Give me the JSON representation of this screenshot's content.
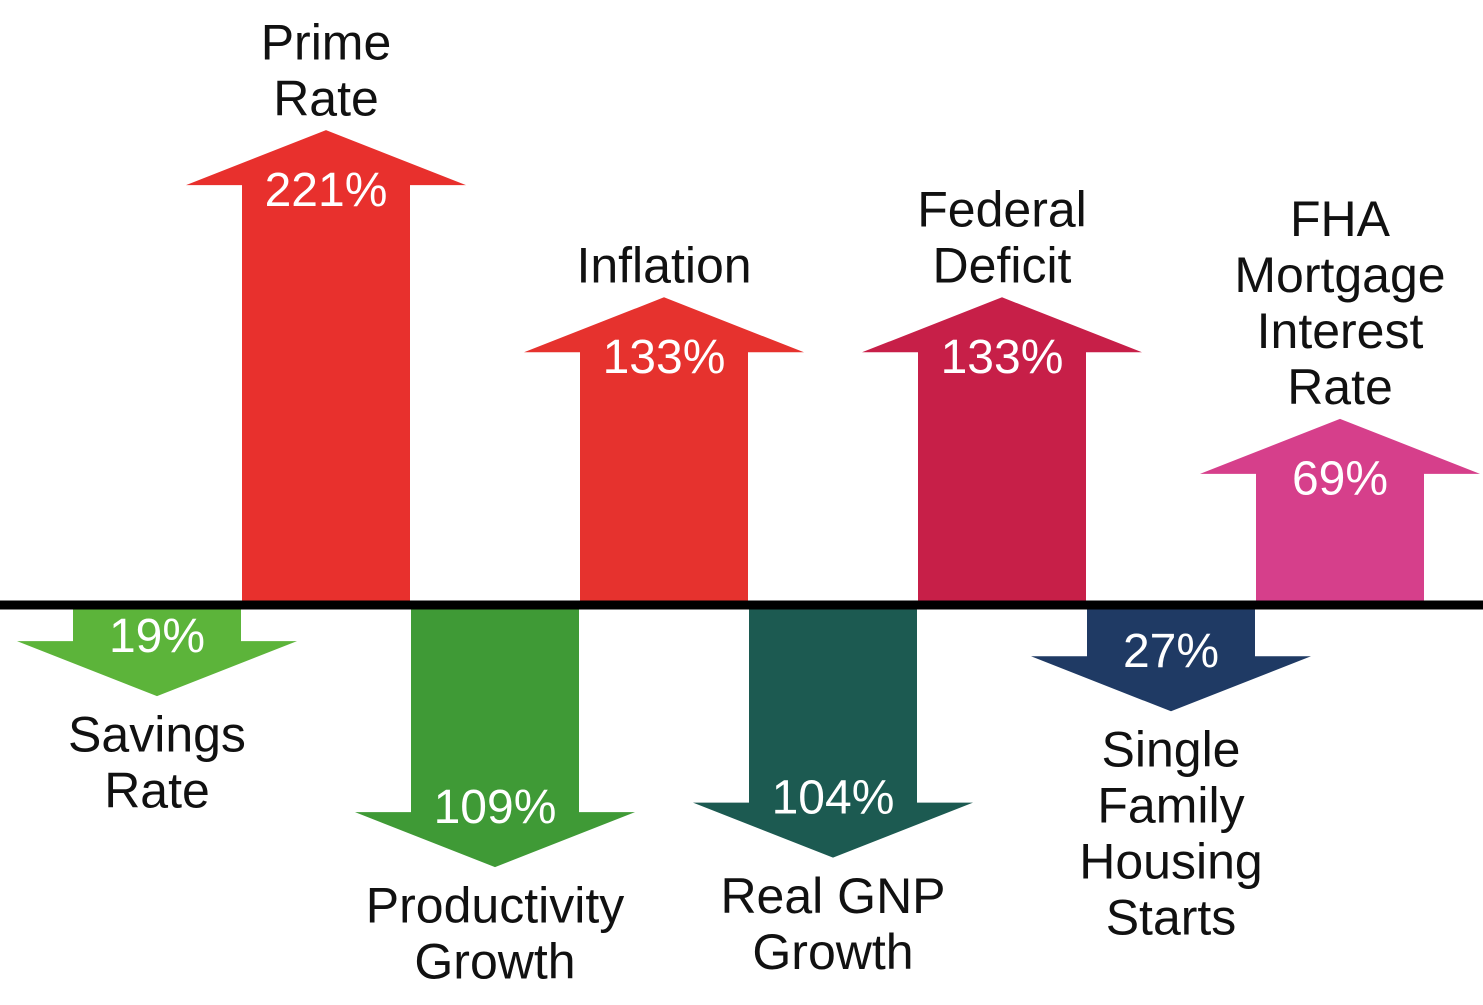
{
  "chart_data": {
    "type": "arrow",
    "categories": [
      [
        "Savings",
        "Rate"
      ],
      [
        "Prime",
        "Rate"
      ],
      [
        "Productivity",
        "Growth"
      ],
      [
        "Inflation"
      ],
      [
        "Real GNP",
        "Growth"
      ],
      [
        "Federal",
        "Deficit"
      ],
      [
        "Single",
        "Family",
        "Housing",
        "Starts"
      ],
      [
        "FHA",
        "Mortgage",
        "Interest",
        "Rate"
      ]
    ],
    "values": [
      19,
      221,
      109,
      133,
      104,
      133,
      27,
      69
    ],
    "value_labels": [
      "19%",
      "221%",
      "109%",
      "133%",
      "104%",
      "133%",
      "27%",
      "69%"
    ],
    "directions": [
      "down",
      "up",
      "down",
      "up",
      "down",
      "up",
      "down",
      "up"
    ],
    "colors": [
      "#5cb43a",
      "#e8302d",
      "#3f9a36",
      "#e6322e",
      "#1c5a51",
      "#c71f48",
      "#1f3a64",
      "#d63f8b"
    ]
  }
}
